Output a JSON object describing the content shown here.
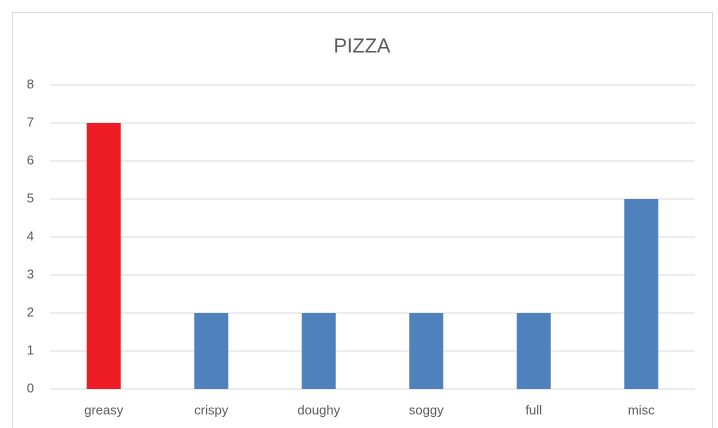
{
  "chart_data": {
    "type": "bar",
    "title": "PIZZA",
    "categories": [
      "greasy",
      "crispy",
      "doughy",
      "soggy",
      "full",
      "misc"
    ],
    "values": [
      7,
      2,
      2,
      2,
      2,
      5
    ],
    "colors": [
      "#ed1c24",
      "#4f81bd",
      "#4f81bd",
      "#4f81bd",
      "#4f81bd",
      "#4f81bd"
    ],
    "ylim": [
      0,
      8
    ],
    "yticks": [
      0,
      1,
      2,
      3,
      4,
      5,
      6,
      7,
      8
    ],
    "grid": true
  }
}
